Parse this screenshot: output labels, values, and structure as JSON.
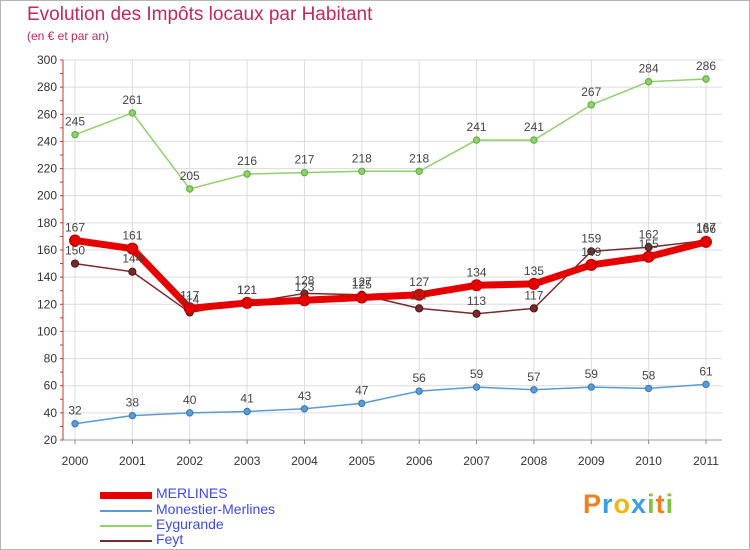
{
  "header": {
    "title": "Evolution des Impôts locaux par Habitant",
    "subtitle": "(en € et par an)"
  },
  "logo": {
    "letters": [
      "P",
      "r",
      "o",
      "x",
      "i",
      "t",
      "i"
    ],
    "colors": [
      "#ee7f22",
      "#3aa0dc",
      "#f0b616",
      "#3aa0dc",
      "#82c341",
      "#ee7f22",
      "#82c341"
    ]
  },
  "chart_data": {
    "type": "line",
    "x": [
      "2000",
      "2001",
      "2002",
      "2003",
      "2004",
      "2005",
      "2006",
      "2007",
      "2008",
      "2009",
      "2010",
      "2011"
    ],
    "ylim": [
      20,
      300
    ],
    "yticks": [
      "20",
      "40",
      "60",
      "80",
      "100",
      "120",
      "140",
      "160",
      "180",
      "200",
      "220",
      "240",
      "260",
      "280",
      "300"
    ],
    "grid": true,
    "legend_position": "bottom-left",
    "series": [
      {
        "name": "MERLINES",
        "color": "#e60000",
        "values": [
          167,
          161,
          117,
          121,
          123,
          125,
          127,
          134,
          135,
          149,
          155,
          166
        ],
        "labels": [
          "167",
          "161",
          "117",
          "121",
          "123",
          "125",
          "127",
          "134",
          "135",
          "149",
          "155",
          "166"
        ]
      },
      {
        "name": "Monestier-Merlines",
        "color": "#5b9bd5",
        "values": [
          32,
          38,
          40,
          41,
          43,
          47,
          56,
          59,
          57,
          59,
          58,
          61
        ],
        "labels": [
          "32",
          "38",
          "40",
          "41",
          "43",
          "47",
          "56",
          "59",
          "57",
          "59",
          "58",
          "61"
        ]
      },
      {
        "name": "Eygurande",
        "color": "#8fd16a",
        "values": [
          245,
          261,
          205,
          216,
          217,
          218,
          218,
          241,
          241,
          267,
          284,
          286
        ],
        "labels": [
          "245",
          "261",
          "205",
          "216",
          "217",
          "218",
          "218",
          "241",
          "241",
          "267",
          "284",
          "286"
        ]
      },
      {
        "name": "Feyt",
        "color": "#7b2a2a",
        "values": [
          150,
          144,
          114,
          121,
          128,
          127,
          117,
          113,
          117,
          159,
          162,
          167
        ],
        "labels": [
          "150",
          "144",
          "114",
          "121",
          "128",
          "127",
          "117",
          "113",
          "117",
          "159",
          "162",
          "167"
        ]
      }
    ]
  }
}
